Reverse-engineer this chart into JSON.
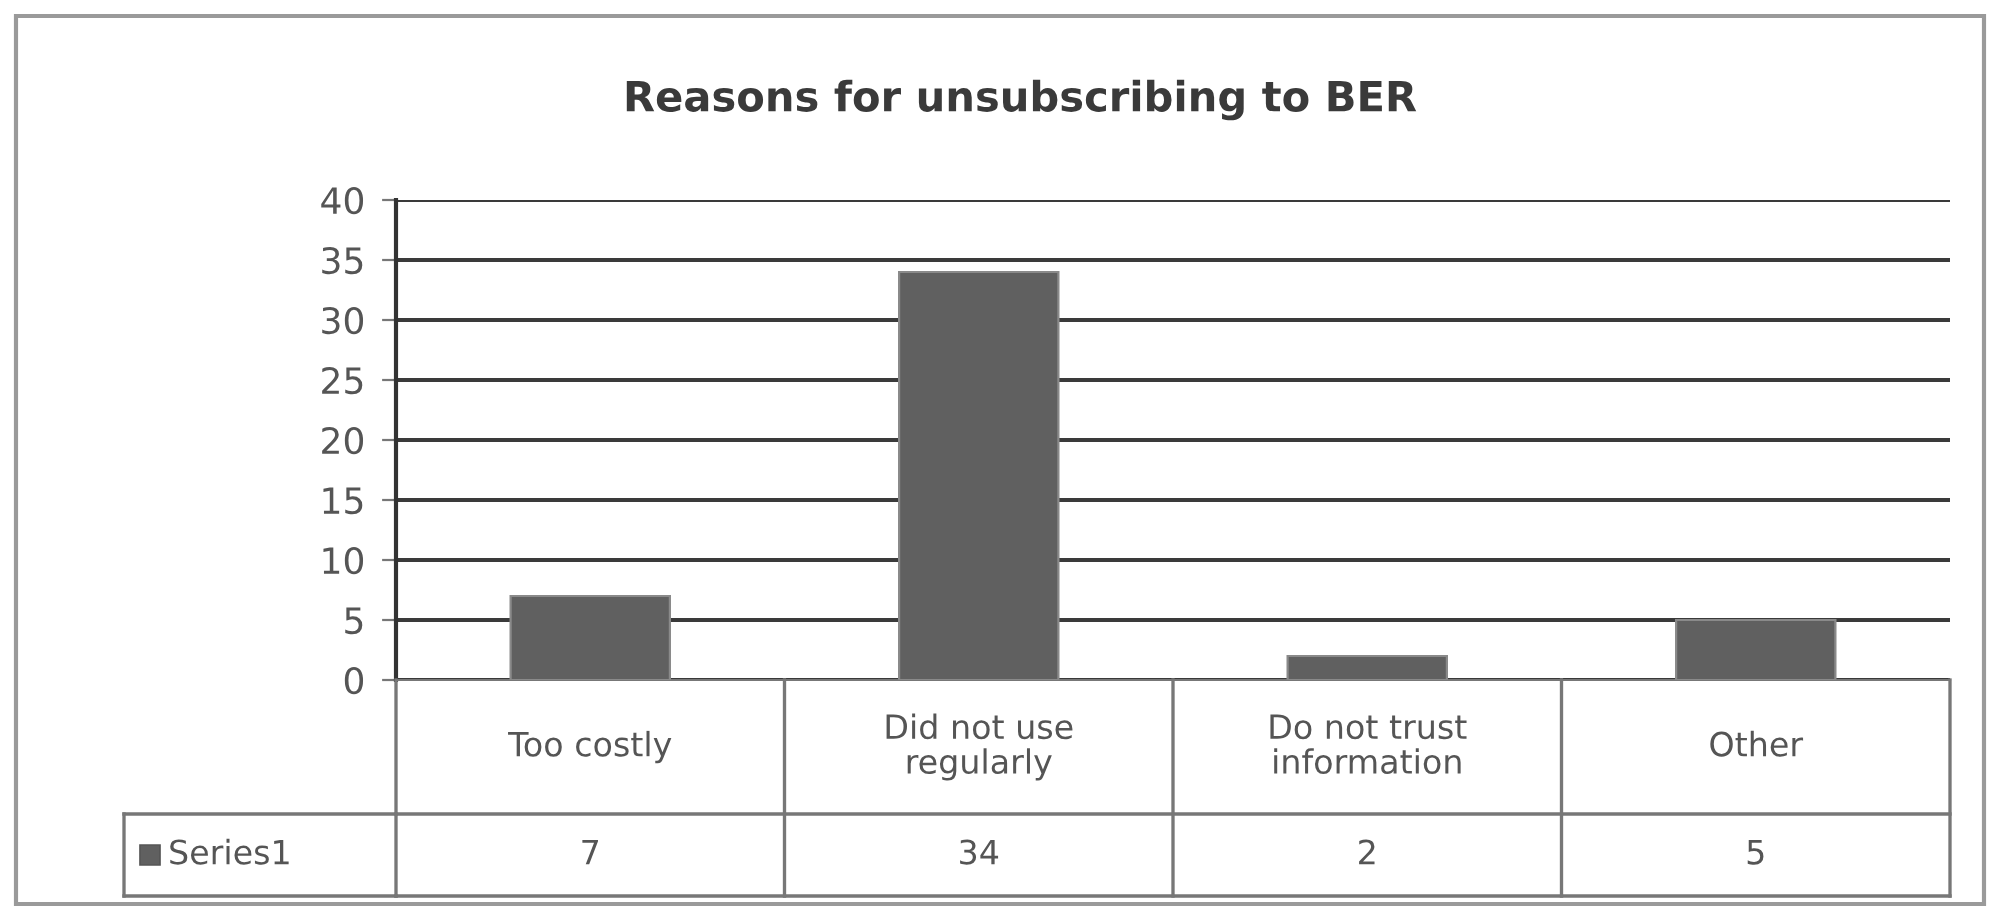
{
  "chart_data": {
    "type": "bar",
    "title": "Reasons for unsubscribing to BER",
    "categories": [
      "Too costly",
      "Did not use regularly",
      "Do not trust information",
      "Other"
    ],
    "series": [
      {
        "name": "Series1",
        "color": "#606060",
        "values": [
          7,
          34,
          2,
          5
        ]
      }
    ],
    "ylim": [
      0,
      40
    ],
    "yticks": [
      0,
      5,
      10,
      15,
      20,
      25,
      30,
      35,
      40
    ],
    "grid": "y",
    "data_labels": true,
    "legend": "bottom"
  }
}
